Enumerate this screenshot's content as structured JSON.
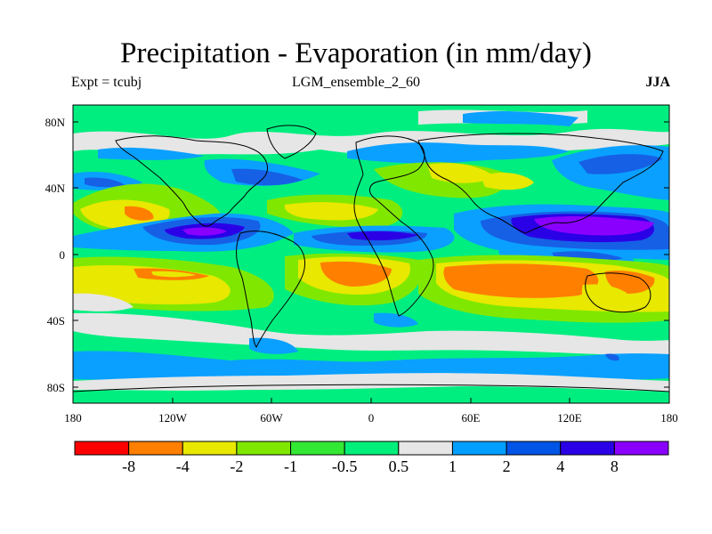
{
  "title": "Precipitation - Evaporation (in mm/day)",
  "left_label": "Expt = tcubj",
  "center_label": "LGM_ensemble_2_60",
  "right_label": "JJA",
  "map": {
    "projection": "cylindrical-equidistant",
    "lon_range": [
      -180,
      180
    ],
    "lat_range": [
      -90,
      90
    ],
    "y_ticks": [
      "80N",
      "40N",
      "0",
      "40S",
      "80S"
    ],
    "x_ticks": [
      "180",
      "120W",
      "60W",
      "0",
      "60E",
      "120E",
      "180"
    ]
  },
  "colorbar": {
    "colors": [
      "#ff0000",
      "#ff7f00",
      "#e8e800",
      "#80e800",
      "#33e833",
      "#00ee7a",
      "#e6e6e6",
      "#009eff",
      "#0054e6",
      "#2a00e6",
      "#8a00ff"
    ],
    "labels": [
      "-8",
      "-4",
      "-2",
      "-1",
      "-0.5",
      "0.5",
      "1",
      "2",
      "4",
      "8"
    ]
  },
  "palette": {
    "green": "#22e822",
    "lightgreen": "#00ee80",
    "grey": "#e6e6e6",
    "lightblue": "#0aa0ff",
    "blue": "#1660e6",
    "darkblue": "#2a00e6",
    "purple": "#8a00ff",
    "yellow": "#e8e800",
    "orange": "#ff7f00",
    "lime": "#80e800"
  }
}
